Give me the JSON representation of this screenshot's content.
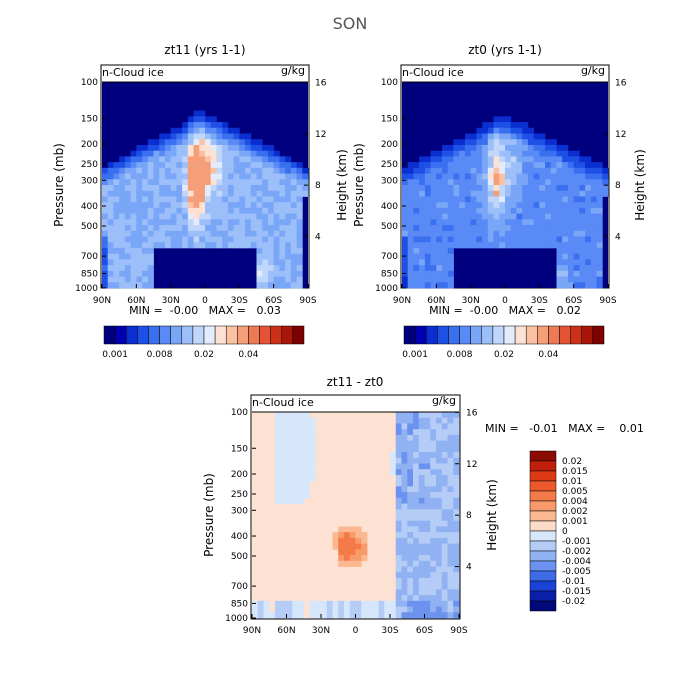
{
  "figure_title": "SON",
  "chart_data": [
    {
      "type": "heatmap",
      "title": "zt11 (yrs 1-1)",
      "field_label": "n-Cloud ice",
      "units": "g/kg",
      "ylabel": "Pressure (mb)",
      "y2label": "Height (km)",
      "x_ticks": [
        "90N",
        "60N",
        "30N",
        "0",
        "30S",
        "60S",
        "90S"
      ],
      "y_ticks": [
        "100",
        "150",
        "200",
        "250",
        "300",
        "400",
        "500",
        "700",
        "850",
        "1000"
      ],
      "y2_ticks": [
        "16",
        "12",
        "8",
        "4"
      ],
      "stats": "MIN =  -0.00   MAX =   0.03",
      "colorbar_labels": [
        "0.001",
        "0.008",
        "0.02",
        "0.04"
      ],
      "colors": [
        "#00007f",
        "#0000b0",
        "#0a2ed0",
        "#1e50e6",
        "#3a6ff0",
        "#5a8af5",
        "#7aa6f8",
        "#9cbff9",
        "#c0d6fb",
        "#e3ecfd",
        "#fde2d3",
        "#fbc1a3",
        "#f59f7a",
        "#ee7a55",
        "#e45434",
        "#cc3018",
        "#a8160a",
        "#7f0000"
      ],
      "core_peak": 0.03
    },
    {
      "type": "heatmap",
      "title": "zt0 (yrs 1-1)",
      "field_label": "n-Cloud ice",
      "units": "g/kg",
      "ylabel": "Pressure (mb)",
      "y2label": "Height (km)",
      "x_ticks": [
        "90N",
        "60N",
        "30N",
        "0",
        "30S",
        "60S",
        "90S"
      ],
      "y_ticks": [
        "100",
        "150",
        "200",
        "250",
        "300",
        "400",
        "500",
        "700",
        "850",
        "1000"
      ],
      "y2_ticks": [
        "16",
        "12",
        "8",
        "4"
      ],
      "stats": "MIN =  -0.00   MAX =   0.02",
      "colorbar_labels": [
        "0.001",
        "0.008",
        "0.02",
        "0.04"
      ],
      "colors": [
        "#00007f",
        "#0000b0",
        "#0a2ed0",
        "#1e50e6",
        "#3a6ff0",
        "#5a8af5",
        "#7aa6f8",
        "#9cbff9",
        "#c0d6fb",
        "#e3ecfd",
        "#fde2d3",
        "#fbc1a3",
        "#f59f7a",
        "#ee7a55",
        "#e45434",
        "#cc3018",
        "#a8160a",
        "#7f0000"
      ],
      "core_peak": 0.02
    },
    {
      "type": "heatmap",
      "title": "zt11 - zt0",
      "field_label": "n-Cloud ice",
      "units": "g/kg",
      "ylabel": "Pressure (mb)",
      "y2label": "Height (km)",
      "x_ticks": [
        "90N",
        "60N",
        "30N",
        "0",
        "30S",
        "60S",
        "90S"
      ],
      "y_ticks": [
        "100",
        "150",
        "200",
        "250",
        "300",
        "400",
        "500",
        "700",
        "850",
        "1000"
      ],
      "y2_ticks": [
        "16",
        "12",
        "8",
        "4"
      ],
      "stats": "MIN =   -0.01   MAX =    0.01",
      "legend_labels": [
        "0.02",
        "0.015",
        "0.01",
        "0.005",
        "0.004",
        "0.002",
        "0.001",
        "0",
        "-0.001",
        "-0.002",
        "-0.004",
        "-0.005",
        "-0.01",
        "-0.015",
        "-0.02"
      ],
      "legend_colors": [
        "#8b0a02",
        "#c0200a",
        "#dc3a14",
        "#ec5a2c",
        "#f47a4a",
        "#f89a6a",
        "#fbb890",
        "#fcdcc8",
        "#d6e6fb",
        "#b4ccf6",
        "#90b2f2",
        "#6a92ee",
        "#3f6be6",
        "#1a42d6",
        "#0a1ea8",
        "#00087a"
      ]
    }
  ]
}
